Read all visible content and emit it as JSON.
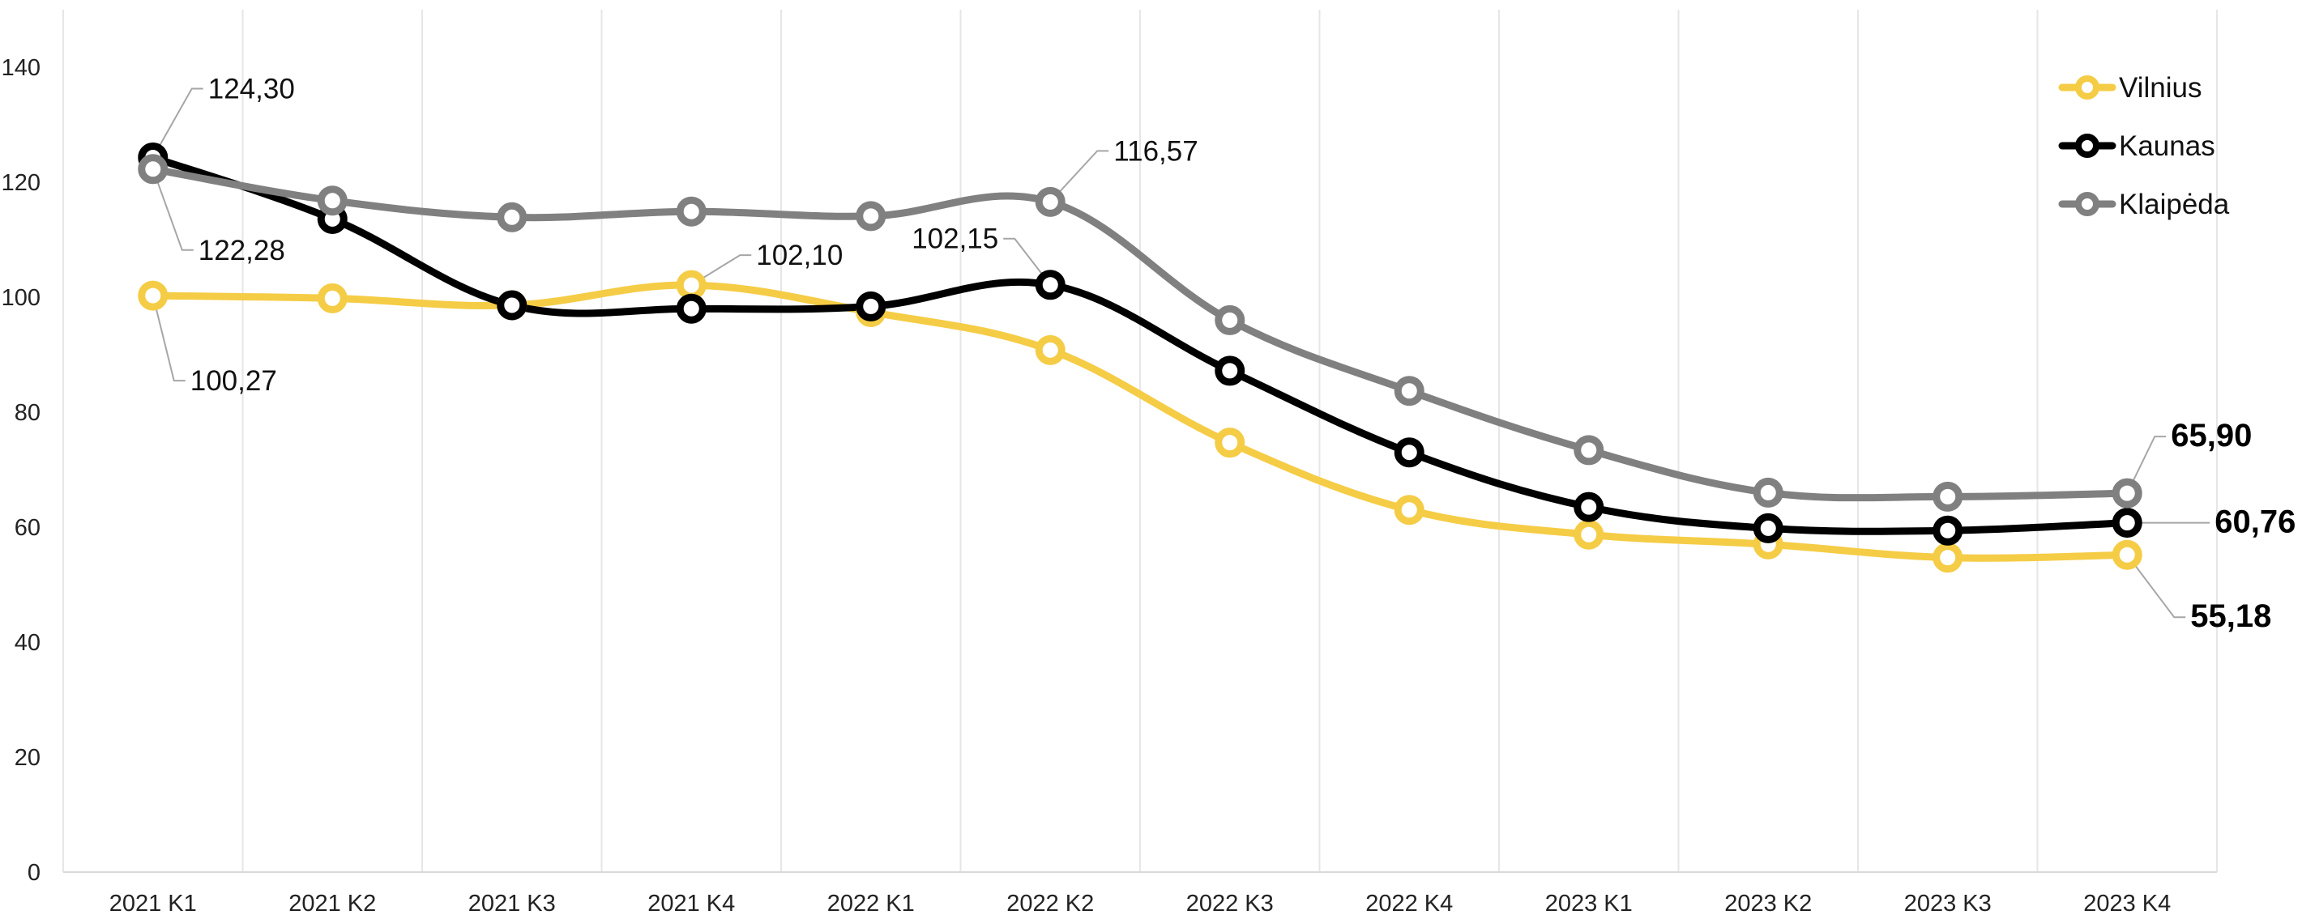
{
  "chart_data": {
    "type": "line",
    "title": "",
    "xlabel": "",
    "ylabel": "",
    "categories": [
      "2021 K1",
      "2021 K2",
      "2021 K3",
      "2021 K4",
      "2022 K1",
      "2022 K2",
      "2022 K3",
      "2022 K4",
      "2023 K1",
      "2023 K2",
      "2023 K3",
      "2023 K4"
    ],
    "ylim": [
      0,
      140
    ],
    "yticks": [
      "0",
      "20",
      "40",
      "60",
      "80",
      "100",
      "120",
      "140"
    ],
    "grid": "vertical",
    "legend": "top-right",
    "series": [
      {
        "name": "Vilnius",
        "color": "#F5CC45",
        "values": [
          100.27,
          99.8,
          98.6,
          102.1,
          97.4,
          90.8,
          74.7,
          63.0,
          58.7,
          57.0,
          54.7,
          55.18
        ]
      },
      {
        "name": "Kaunas",
        "color": "#000000",
        "values": [
          124.3,
          113.6,
          98.6,
          98.0,
          98.4,
          102.15,
          87.2,
          73.0,
          63.5,
          59.8,
          59.4,
          60.76
        ]
      },
      {
        "name": "Klaipėda",
        "color": "#808080",
        "values": [
          122.28,
          116.8,
          113.9,
          114.9,
          114.1,
          116.57,
          96.0,
          83.7,
          73.4,
          66.0,
          65.3,
          65.9
        ]
      }
    ],
    "annotations": [
      {
        "series": "Kaunas",
        "index": 0,
        "text": "124,30",
        "bold": false
      },
      {
        "series": "Klaipėda",
        "index": 0,
        "text": "122,28",
        "bold": false
      },
      {
        "series": "Vilnius",
        "index": 0,
        "text": "100,27",
        "bold": false
      },
      {
        "series": "Vilnius",
        "index": 3,
        "text": "102,10",
        "bold": false
      },
      {
        "series": "Kaunas",
        "index": 5,
        "text": "102,15",
        "bold": false
      },
      {
        "series": "Klaipėda",
        "index": 5,
        "text": "116,57",
        "bold": false
      },
      {
        "series": "Klaipėda",
        "index": 11,
        "text": "65,90",
        "bold": true
      },
      {
        "series": "Kaunas",
        "index": 11,
        "text": "60,76",
        "bold": true
      },
      {
        "series": "Vilnius",
        "index": 11,
        "text": "55,18",
        "bold": true
      }
    ]
  }
}
